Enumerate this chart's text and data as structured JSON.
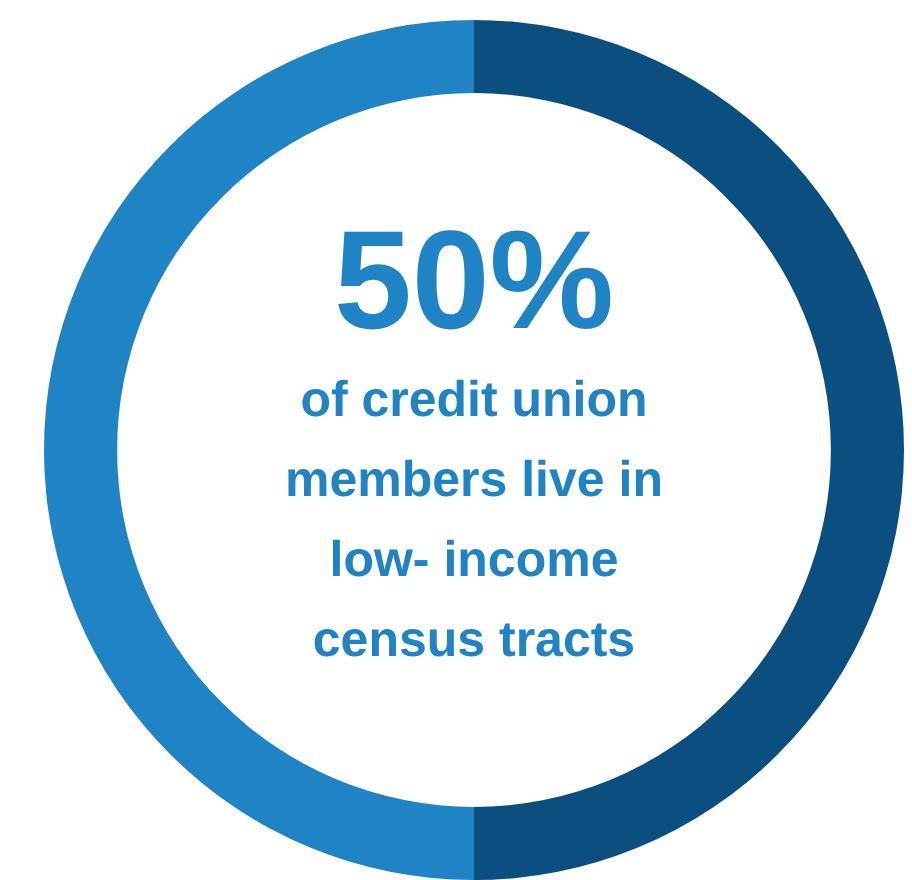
{
  "chart_data": {
    "type": "donut",
    "categories": [
      null,
      null
    ],
    "values": [
      50,
      50
    ],
    "colors": [
      "#0b4f80",
      "#1f84c6"
    ],
    "annotations": [
      "50%",
      "of credit union members live in low- income census tracts"
    ]
  }
}
